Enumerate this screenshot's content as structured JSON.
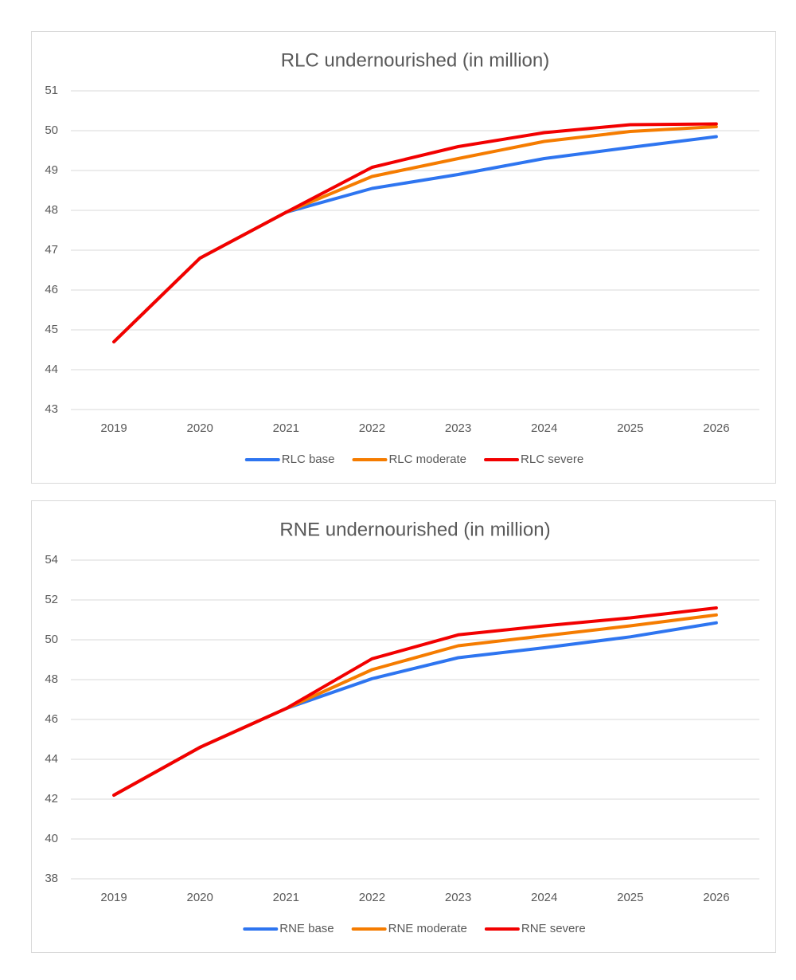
{
  "chart_data": [
    {
      "type": "line",
      "title": "RLC undernourished (in million)",
      "xlabel": "",
      "ylabel": "",
      "categories": [
        "2019",
        "2020",
        "2021",
        "2022",
        "2023",
        "2024",
        "2025",
        "2026"
      ],
      "ylim": [
        43,
        51
      ],
      "yticks": [
        43,
        44,
        45,
        46,
        47,
        48,
        49,
        50,
        51
      ],
      "grid": true,
      "legend_position": "bottom",
      "series": [
        {
          "name": "RLC base",
          "color": "#2e75f0",
          "values": [
            44.7,
            46.8,
            47.95,
            48.55,
            48.9,
            49.3,
            49.58,
            49.85
          ]
        },
        {
          "name": "RLC moderate",
          "color": "#f57c00",
          "values": [
            44.7,
            46.8,
            47.95,
            48.85,
            49.3,
            49.73,
            49.98,
            50.1
          ]
        },
        {
          "name": "RLC severe",
          "color": "#f20000",
          "values": [
            44.7,
            46.8,
            47.95,
            49.08,
            49.6,
            49.95,
            50.15,
            50.17
          ]
        }
      ]
    },
    {
      "type": "line",
      "title": "RNE undernourished (in million)",
      "xlabel": "",
      "ylabel": "",
      "categories": [
        "2019",
        "2020",
        "2021",
        "2022",
        "2023",
        "2024",
        "2025",
        "2026"
      ],
      "ylim": [
        38,
        54
      ],
      "yticks": [
        38,
        40,
        42,
        44,
        46,
        48,
        50,
        52,
        54
      ],
      "grid": true,
      "legend_position": "bottom",
      "series": [
        {
          "name": "RNE base",
          "color": "#2e75f0",
          "values": [
            42.2,
            44.6,
            46.55,
            48.05,
            49.1,
            49.6,
            50.15,
            50.85
          ]
        },
        {
          "name": "RNE moderate",
          "color": "#f57c00",
          "values": [
            42.2,
            44.6,
            46.55,
            48.5,
            49.7,
            50.2,
            50.7,
            51.25
          ]
        },
        {
          "name": "RNE severe",
          "color": "#f20000",
          "values": [
            42.2,
            44.6,
            46.55,
            49.05,
            50.25,
            50.7,
            51.1,
            51.6
          ]
        }
      ]
    }
  ]
}
